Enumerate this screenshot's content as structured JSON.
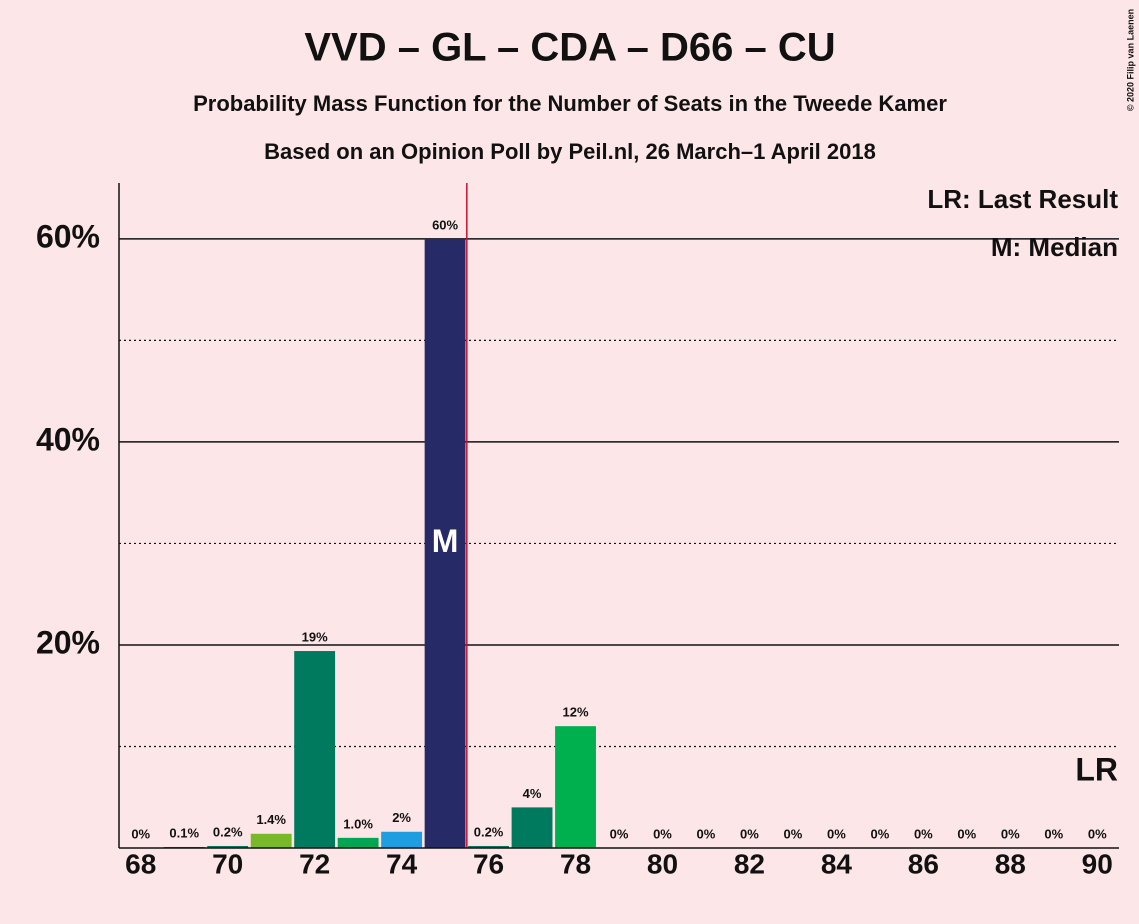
{
  "chart_data": {
    "type": "bar",
    "title": "VVD – GL – CDA – D66 – CU",
    "subtitle": "Probability Mass Function for the Number of Seats in the Tweede Kamer",
    "caption": "Based on an Opinion Poll by Peil.nl, 26 March–1 April 2018",
    "copyright": "© 2020 Filip van Laenen",
    "x": [
      68,
      69,
      70,
      71,
      72,
      73,
      74,
      75,
      76,
      77,
      78,
      79,
      80,
      81,
      82,
      83,
      84,
      85,
      86,
      87,
      88,
      89,
      90
    ],
    "values": [
      0,
      0.1,
      0.2,
      1.4,
      19.4,
      1.0,
      1.6,
      60,
      0.2,
      4.0,
      12.0,
      0,
      0,
      0,
      0,
      0,
      0,
      0,
      0,
      0,
      0,
      0,
      0
    ],
    "value_labels": [
      "0%",
      "0.1%",
      "0.2%",
      "1.4%",
      "19%",
      "1.0%",
      "2%",
      "60%",
      "0.2%",
      "4%",
      "12%",
      "0%",
      "0%",
      "0%",
      "0%",
      "0%",
      "0%",
      "0%",
      "0%",
      "0%",
      "0%",
      "0%",
      "0%"
    ],
    "colors": [
      "#007a5e",
      "#007a5e",
      "#007a5e",
      "#78b829",
      "#007a5e",
      "#00a651",
      "#1e9ee0",
      "#262a66",
      "#007a5e",
      "#007a5e",
      "#00b04f",
      "#007a5e",
      "#007a5e",
      "#007a5e",
      "#007a5e",
      "#007a5e",
      "#007a5e",
      "#007a5e",
      "#007a5e",
      "#007a5e",
      "#007a5e",
      "#007a5e",
      "#007a5e"
    ],
    "xlim": [
      67.5,
      90.5
    ],
    "xticks": [
      68,
      70,
      72,
      74,
      76,
      78,
      80,
      82,
      84,
      86,
      88,
      90
    ],
    "ylim": [
      0,
      65.5
    ],
    "yticks": [
      {
        "value": 20,
        "label": "20%"
      },
      {
        "value": 40,
        "label": "40%"
      },
      {
        "value": 60,
        "label": "60%"
      }
    ],
    "yminor": [
      10,
      30,
      50
    ],
    "grid": true,
    "majority": 76,
    "median": 75,
    "median_label": "M",
    "last_result": 90,
    "last_result_label": "LR",
    "legend": [
      "LR: Last Result",
      "M: Median"
    ]
  }
}
